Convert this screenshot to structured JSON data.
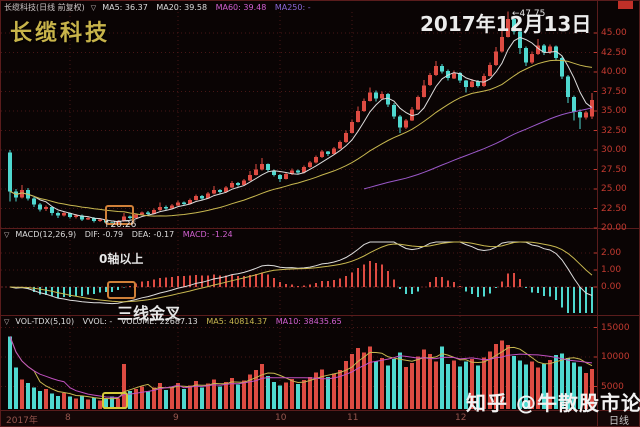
{
  "icons": {
    "triangle": "▽"
  },
  "colors": {
    "background": "#0a0404",
    "frame": "#5a1c1c",
    "grid": "#481616",
    "grid_zero": "#6a2424",
    "up": "#dd4b42",
    "down": "#4fd8cf",
    "ma5": "#dcdcdc",
    "ma20": "#c8b850",
    "ma60": "#9a58c8",
    "dif": "#dcdcdc",
    "dea": "#c8b850",
    "vol_ma5": "#c8b850",
    "vol_ma10": "#c050c0",
    "axis_text": "#c23a30",
    "month_text": "#96564e",
    "title": "#c8b44a",
    "text": "#e6e6e6",
    "box_orange": "#d08038",
    "box_yellow": "#d4c83c"
  },
  "header": {
    "instrument": "长缆科技(日线 前复权)",
    "ma5": "MA5: 36.37",
    "ma20": "MA20: 39.58",
    "ma60": "MA60: 39.48",
    "ma250": "MA250: -"
  },
  "title": "长缆科技",
  "date_label": "2017年12月13日",
  "macd_header": {
    "name": "MACD(12,26,9)",
    "dif": "DIF: -0.79",
    "dea": "DEA: -0.17",
    "macd": "MACD: -1.24"
  },
  "vol_header": {
    "name": "VOL-TDX(5,10)",
    "vvol": "VVOL: -",
    "volume": "VOLUME: 22687.13",
    "ma5": "MA5: 40814.37",
    "ma10": "MA10: 38435.65"
  },
  "annotations": {
    "peak": "←47.75",
    "low": "↑20.26",
    "above_zero": "0轴以上",
    "golden_cross": "三线金叉",
    "watermark": "知乎 @牛散股市论",
    "period": "日线"
  },
  "axes": {
    "price_labels": [
      "45.00",
      "42.50",
      "40.00",
      "37.50",
      "35.00",
      "32.50",
      "30.00",
      "27.50",
      "25.00",
      "22.50",
      "20.00"
    ],
    "macd_labels": [
      "2.00",
      "1.00",
      "0.00"
    ],
    "volume_labels": [
      "15000",
      "10000",
      "5000"
    ],
    "time_labels": [
      {
        "label": "2017年",
        "day": 0
      },
      {
        "label": "8",
        "day": 10
      },
      {
        "label": "9",
        "day": 28
      },
      {
        "label": "10",
        "day": 45
      },
      {
        "label": "11",
        "day": 57
      },
      {
        "label": "12",
        "day": 75
      }
    ]
  },
  "chart_data": {
    "type": "candlestick",
    "title": "长缆科技(日线 前复权)",
    "ylim": [
      19.8,
      48.2
    ],
    "high_point": 47.75,
    "low_point": 20.26,
    "indicator_params": {
      "ma": [
        5,
        20,
        60,
        250
      ],
      "macd": [
        12,
        26,
        9
      ],
      "vol_ma": [
        5,
        10
      ]
    },
    "legend": [
      "MA5",
      "MA20",
      "MA60",
      "DIF",
      "DEA",
      "MACD",
      "VOL"
    ],
    "ohlc": [
      [
        29.7,
        30.0,
        23.4,
        24.7
      ],
      [
        24.7,
        25.0,
        23.4,
        23.9
      ],
      [
        23.9,
        25.5,
        23.8,
        24.9
      ],
      [
        24.9,
        25.1,
        23.5,
        23.8
      ],
      [
        23.8,
        24.0,
        22.7,
        23.0
      ],
      [
        23.0,
        23.2,
        22.1,
        22.4
      ],
      [
        22.4,
        22.9,
        22.2,
        22.7
      ],
      [
        22.7,
        22.8,
        21.6,
        21.9
      ],
      [
        21.9,
        22.1,
        21.3,
        21.6
      ],
      [
        21.6,
        22.1,
        21.5,
        21.9
      ],
      [
        21.9,
        22.0,
        21.2,
        21.4
      ],
      [
        21.4,
        21.8,
        21.2,
        21.6
      ],
      [
        21.6,
        21.7,
        20.9,
        21.1
      ],
      [
        21.1,
        21.5,
        21.0,
        21.3
      ],
      [
        21.3,
        21.4,
        20.7,
        20.9
      ],
      [
        20.9,
        21.3,
        20.8,
        21.1
      ],
      [
        21.1,
        21.2,
        20.5,
        20.7
      ],
      [
        20.7,
        20.8,
        20.26,
        20.5
      ],
      [
        20.5,
        21.0,
        20.4,
        20.9
      ],
      [
        20.9,
        21.9,
        20.8,
        21.5
      ],
      [
        21.5,
        21.6,
        21.1,
        21.3
      ],
      [
        21.3,
        21.8,
        21.2,
        21.7
      ],
      [
        21.7,
        22.1,
        21.6,
        22.0
      ],
      [
        22.0,
        22.2,
        21.6,
        21.8
      ],
      [
        21.8,
        22.5,
        21.7,
        22.3
      ],
      [
        22.3,
        23.3,
        22.2,
        22.7
      ],
      [
        22.7,
        22.9,
        22.3,
        22.5
      ],
      [
        22.5,
        23.1,
        22.4,
        22.9
      ],
      [
        22.9,
        23.5,
        22.8,
        23.3
      ],
      [
        23.3,
        23.4,
        22.9,
        23.1
      ],
      [
        23.1,
        23.8,
        23.0,
        23.6
      ],
      [
        23.6,
        24.3,
        23.5,
        24.1
      ],
      [
        24.1,
        24.2,
        23.6,
        23.8
      ],
      [
        23.8,
        24.6,
        23.7,
        24.4
      ],
      [
        24.4,
        25.4,
        24.3,
        24.9
      ],
      [
        24.9,
        25.0,
        24.4,
        24.6
      ],
      [
        24.6,
        25.4,
        24.5,
        25.2
      ],
      [
        25.2,
        26.0,
        25.1,
        25.8
      ],
      [
        25.8,
        25.9,
        25.3,
        25.5
      ],
      [
        25.5,
        26.3,
        25.4,
        26.1
      ],
      [
        26.1,
        27.3,
        26.0,
        26.8
      ],
      [
        26.8,
        28.2,
        26.7,
        27.5
      ],
      [
        27.5,
        29.0,
        27.4,
        28.2
      ],
      [
        28.2,
        28.3,
        27.2,
        27.4
      ],
      [
        27.4,
        27.5,
        26.6,
        26.8
      ],
      [
        26.8,
        26.9,
        25.9,
        26.3
      ],
      [
        26.3,
        27.1,
        26.2,
        26.9
      ],
      [
        26.9,
        27.6,
        26.8,
        27.4
      ],
      [
        27.4,
        27.5,
        26.9,
        27.1
      ],
      [
        27.1,
        28.0,
        27.0,
        27.8
      ],
      [
        27.8,
        28.6,
        27.7,
        28.4
      ],
      [
        28.4,
        29.3,
        28.3,
        29.1
      ],
      [
        29.1,
        30.0,
        29.0,
        29.8
      ],
      [
        29.8,
        29.9,
        29.2,
        29.5
      ],
      [
        29.5,
        30.4,
        29.4,
        30.2
      ],
      [
        30.2,
        31.2,
        30.1,
        31.0
      ],
      [
        31.0,
        32.5,
        30.9,
        32.2
      ],
      [
        32.2,
        33.9,
        32.1,
        33.6
      ],
      [
        33.6,
        35.6,
        33.5,
        35.0
      ],
      [
        35.0,
        36.6,
        34.9,
        36.3
      ],
      [
        36.3,
        38.0,
        36.2,
        37.4
      ],
      [
        37.4,
        37.6,
        36.2,
        36.6
      ],
      [
        36.6,
        37.5,
        36.4,
        37.2
      ],
      [
        37.2,
        37.3,
        35.5,
        35.8
      ],
      [
        35.8,
        36.0,
        34.0,
        34.3
      ],
      [
        34.3,
        34.5,
        32.2,
        32.9
      ],
      [
        32.9,
        34.0,
        32.7,
        33.8
      ],
      [
        33.8,
        35.5,
        33.7,
        35.2
      ],
      [
        35.2,
        37.0,
        35.1,
        36.8
      ],
      [
        36.8,
        39.0,
        36.7,
        38.3
      ],
      [
        38.3,
        39.9,
        38.2,
        39.6
      ],
      [
        39.6,
        41.4,
        39.5,
        40.8
      ],
      [
        40.8,
        41.0,
        39.8,
        40.1
      ],
      [
        40.1,
        40.3,
        38.9,
        39.2
      ],
      [
        39.2,
        40.2,
        39.1,
        39.9
      ],
      [
        39.9,
        40.0,
        38.6,
        38.9
      ],
      [
        38.9,
        39.0,
        37.4,
        38.1
      ],
      [
        38.1,
        39.1,
        38.0,
        38.8
      ],
      [
        38.8,
        39.0,
        38.0,
        38.2
      ],
      [
        38.2,
        39.8,
        38.1,
        39.5
      ],
      [
        39.5,
        41.2,
        39.4,
        40.9
      ],
      [
        40.9,
        43.2,
        40.8,
        42.6
      ],
      [
        42.6,
        45.3,
        42.5,
        44.5
      ],
      [
        44.5,
        47.75,
        44.4,
        46.8
      ],
      [
        46.8,
        47.2,
        44.8,
        45.2
      ],
      [
        45.2,
        45.5,
        42.3,
        43.1
      ],
      [
        43.1,
        43.3,
        40.8,
        41.2
      ],
      [
        41.2,
        42.6,
        41.0,
        42.3
      ],
      [
        42.3,
        44.2,
        42.2,
        43.4
      ],
      [
        43.4,
        43.6,
        42.2,
        42.5
      ],
      [
        42.5,
        43.5,
        42.3,
        43.3
      ],
      [
        43.3,
        43.4,
        41.5,
        41.8
      ],
      [
        41.8,
        42.0,
        39.1,
        39.4
      ],
      [
        39.4,
        39.6,
        36.0,
        36.8
      ],
      [
        36.8,
        37.0,
        33.8,
        34.9
      ],
      [
        34.9,
        35.2,
        32.7,
        34.2
      ],
      [
        34.2,
        35.0,
        33.9,
        34.8
      ],
      [
        34.3,
        37.3,
        34.0,
        36.4
      ]
    ],
    "volumes": [
      13500,
      8200,
      6200,
      5600,
      4800,
      4200,
      4600,
      3800,
      3400,
      3900,
      3300,
      3000,
      3400,
      2800,
      3100,
      2600,
      2900,
      3300,
      3000,
      8800,
      4200,
      4600,
      5000,
      4200,
      4800,
      5600,
      4400,
      5000,
      5600,
      4600,
      5200,
      5900,
      4800,
      5500,
      6200,
      5000,
      5800,
      6400,
      5300,
      6000,
      7000,
      7800,
      8800,
      6800,
      5800,
      5200,
      5700,
      6300,
      5400,
      6100,
      6600,
      7400,
      7900,
      6600,
      7200,
      7800,
      9300,
      10500,
      11500,
      10800,
      11800,
      9200,
      9800,
      8600,
      9700,
      10800,
      8300,
      9000,
      10100,
      11300,
      10500,
      9200,
      11800,
      8800,
      9400,
      8400,
      9200,
      9700,
      8600,
      9900,
      10900,
      12200,
      12800,
      12000,
      10200,
      9400,
      8700,
      9200,
      8200,
      8800,
      9500,
      10300,
      10600,
      9800,
      9100,
      8400,
      7300,
      8000
    ]
  }
}
